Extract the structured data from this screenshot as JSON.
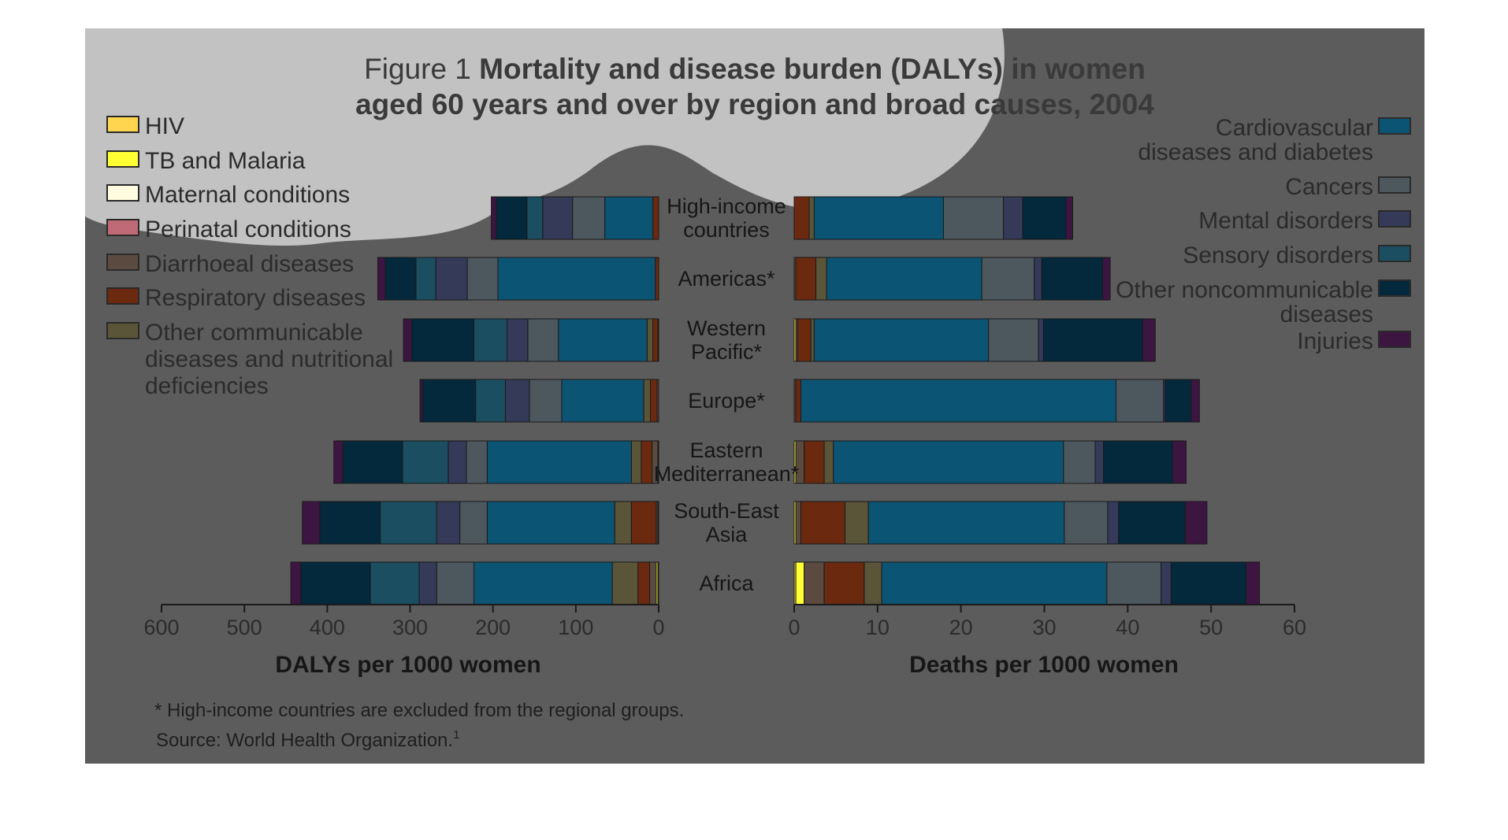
{
  "title": {
    "prefix": "Figure 1",
    "bold_line1": "Mortality and disease burden (DALYs) in women",
    "line2": "aged 60 years and over by region and broad causes, 2004"
  },
  "footnote": "* High-income countries are excluded from the regional groups.",
  "source": "Source: World Health Organization.",
  "source_sup": "1",
  "colors": {
    "panel_bg": "#5c5c5c",
    "overlay": "#c2c2c2",
    "text_dark": "#3a3a3a",
    "text_light": "#2b2b2b"
  },
  "legend_left": [
    {
      "key": "HIV",
      "lines": [
        "HIV"
      ],
      "color": "#ffd54f"
    },
    {
      "key": "TB",
      "lines": [
        "TB and Malaria"
      ],
      "color": "#ffff33"
    },
    {
      "key": "Maternal",
      "lines": [
        "Maternal conditions"
      ],
      "color": "#fffce0"
    },
    {
      "key": "Perinatal",
      "lines": [
        "Perinatal conditions"
      ],
      "color": "#c06a78"
    },
    {
      "key": "Diarrhoeal",
      "lines": [
        "Diarrhoeal diseases"
      ],
      "color": "#5a4a40"
    },
    {
      "key": "Respiratory",
      "lines": [
        "Respiratory diseases"
      ],
      "color": "#6b2a10"
    },
    {
      "key": "OtherComm",
      "lines": [
        "Other communicable",
        "diseases and nutritional",
        "deficiencies"
      ],
      "color": "#5a5438"
    }
  ],
  "legend_right": [
    {
      "key": "Cardio",
      "lines": [
        "Cardiovascular",
        "diseases and diabetes"
      ],
      "color": "#0c5474"
    },
    {
      "key": "Cancers",
      "lines": [
        "Cancers"
      ],
      "color": "#4c575e"
    },
    {
      "key": "Mental",
      "lines": [
        "Mental disorders"
      ],
      "color": "#343a58"
    },
    {
      "key": "Sensory",
      "lines": [
        "Sensory disorders"
      ],
      "color": "#1a4e60"
    },
    {
      "key": "OtherNCD",
      "lines": [
        "Other noncommunicable",
        "diseases"
      ],
      "color": "#04283c"
    },
    {
      "key": "Injuries",
      "lines": [
        "Injuries"
      ],
      "color": "#3c1640"
    }
  ],
  "chart_data": [
    {
      "type": "bar",
      "orientation": "horizontal",
      "stacked": true,
      "xlabel": "DALYs per 1000 women",
      "xlim": [
        600,
        0
      ],
      "xticks": [
        "600",
        "500",
        "400",
        "300",
        "200",
        "100",
        "0"
      ],
      "categories": [
        "High-income countries",
        "Americas*",
        "Western Pacific*",
        "Europe*",
        "Eastern Mediterranean*",
        "South-East Asia",
        "Africa"
      ],
      "series": [
        {
          "name": "HIV",
          "values": [
            0,
            0,
            0,
            0,
            0,
            0,
            1
          ]
        },
        {
          "name": "TB and Malaria",
          "values": [
            0,
            0,
            0,
            0,
            1,
            1,
            2
          ]
        },
        {
          "name": "Maternal conditions",
          "values": [
            0,
            0,
            0,
            0,
            0,
            0,
            0
          ]
        },
        {
          "name": "Perinatal conditions",
          "values": [
            0,
            0,
            0,
            0,
            0,
            0,
            0
          ]
        },
        {
          "name": "Diarrhoeal diseases",
          "values": [
            0,
            0,
            1,
            2,
            7,
            2,
            8
          ]
        },
        {
          "name": "Respiratory diseases",
          "values": [
            7,
            4,
            6,
            8,
            13,
            30,
            14
          ]
        },
        {
          "name": "Other communicable diseases and nutritional deficiencies",
          "values": [
            0,
            0,
            7,
            8,
            12,
            20,
            31
          ]
        },
        {
          "name": "Cardiovascular diseases and diabetes",
          "values": [
            58,
            190,
            107,
            99,
            174,
            154,
            167
          ]
        },
        {
          "name": "Cancers",
          "values": [
            39,
            37,
            37,
            39,
            25,
            33,
            45
          ]
        },
        {
          "name": "Mental disorders",
          "values": [
            36,
            38,
            25,
            29,
            22,
            28,
            21
          ]
        },
        {
          "name": "Sensory disorders",
          "values": [
            19,
            24,
            40,
            36,
            55,
            68,
            59
          ]
        },
        {
          "name": "Other noncommunicable diseases",
          "values": [
            37,
            37,
            75,
            64,
            72,
            73,
            84
          ]
        },
        {
          "name": "Injuries",
          "values": [
            6,
            9,
            10,
            3,
            11,
            21,
            12
          ]
        }
      ]
    },
    {
      "type": "bar",
      "orientation": "horizontal",
      "stacked": true,
      "xlabel": "Deaths per 1000 women",
      "xlim": [
        0,
        60
      ],
      "xticks": [
        "0",
        "10",
        "20",
        "30",
        "40",
        "50",
        "60"
      ],
      "categories": [
        "High-income countries",
        "Americas*",
        "Western Pacific*",
        "Europe*",
        "Eastern Mediterranean*",
        "South-East Asia",
        "Africa"
      ],
      "series": [
        {
          "name": "HIV",
          "values": [
            0,
            0,
            0,
            0,
            0,
            0,
            0.2
          ]
        },
        {
          "name": "TB and Malaria",
          "values": [
            0,
            0,
            0.2,
            0,
            0.2,
            0.2,
            1
          ]
        },
        {
          "name": "Maternal conditions",
          "values": [
            0,
            0,
            0,
            0,
            0,
            0,
            0
          ]
        },
        {
          "name": "Perinatal conditions",
          "values": [
            0,
            0,
            0,
            0,
            0,
            0,
            0
          ]
        },
        {
          "name": "Diarrhoeal diseases",
          "values": [
            0,
            0.2,
            0.2,
            0.2,
            1,
            0.6,
            2.4
          ]
        },
        {
          "name": "Respiratory diseases",
          "values": [
            1.8,
            2.4,
            1.6,
            0.6,
            2.4,
            5.3,
            4.8
          ]
        },
        {
          "name": "Other communicable diseases and nutritional deficiencies",
          "values": [
            0.6,
            1.3,
            0.4,
            0,
            1.1,
            2.8,
            2.1
          ]
        },
        {
          "name": "Cardiovascular diseases and diabetes",
          "values": [
            15.5,
            18.6,
            20.9,
            37.8,
            27.6,
            23.5,
            27
          ]
        },
        {
          "name": "Cancers",
          "values": [
            7.2,
            6.3,
            6.0,
            5.7,
            3.8,
            5.2,
            6.5
          ]
        },
        {
          "name": "Mental disorders",
          "values": [
            2.3,
            0.9,
            0.6,
            0.2,
            1.0,
            1.3,
            1.2
          ]
        },
        {
          "name": "Sensory disorders",
          "values": [
            0,
            0,
            0,
            0,
            0,
            0,
            0
          ]
        },
        {
          "name": "Other noncommunicable diseases",
          "values": [
            5.2,
            7.3,
            11.9,
            3.1,
            8.3,
            8.0,
            9.0
          ]
        },
        {
          "name": "Injuries",
          "values": [
            0.8,
            0.9,
            1.5,
            1.0,
            1.6,
            2.6,
            1.6
          ]
        }
      ]
    }
  ],
  "region_labels": [
    [
      "High-income",
      "countries"
    ],
    [
      "Americas*"
    ],
    [
      "Western",
      "Pacific*"
    ],
    [
      "Europe*"
    ],
    [
      "Eastern",
      "Mediterranean*"
    ],
    [
      "South-East",
      "Asia"
    ],
    [
      "Africa"
    ]
  ]
}
